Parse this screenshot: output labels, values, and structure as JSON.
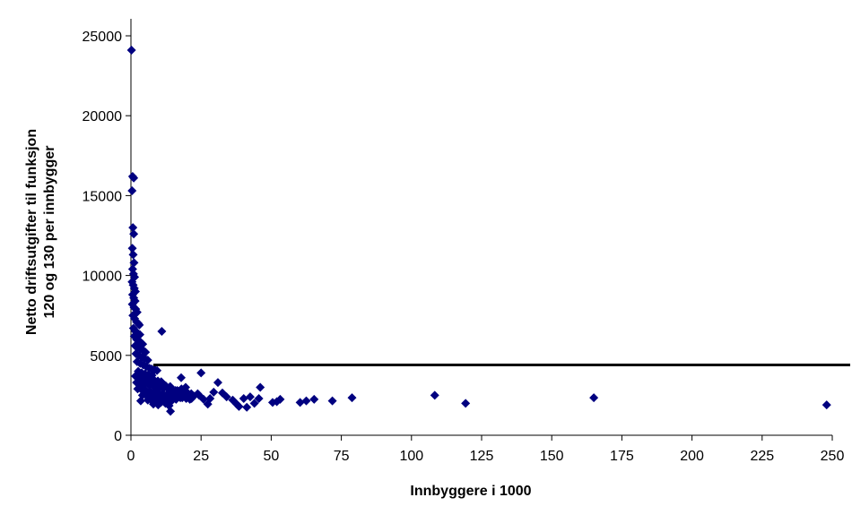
{
  "chart_data": {
    "type": "scatter",
    "title": "",
    "xlabel": "Innbyggere i 1000",
    "ylabel_lines": [
      "Netto driftsutgifter til funksjon",
      "120 og 130 per innbygger"
    ],
    "xlim": [
      0,
      250
    ],
    "ylim": [
      0,
      25000
    ],
    "x_ticks": [
      0,
      25,
      50,
      75,
      100,
      125,
      150,
      175,
      200,
      225,
      250
    ],
    "y_ticks": [
      0,
      5000,
      10000,
      15000,
      20000,
      25000
    ],
    "grid": false,
    "legend": "none",
    "marker_color": "#000080",
    "line_color": "#000000",
    "reference_line": {
      "y": 4400,
      "x_from": 8,
      "x_to": 258
    },
    "points": [
      [
        0.2,
        24100
      ],
      [
        0.6,
        16200
      ],
      [
        1.0,
        16100
      ],
      [
        0.4,
        15300
      ],
      [
        0.7,
        13000
      ],
      [
        1.0,
        12600
      ],
      [
        0.5,
        11700
      ],
      [
        0.8,
        11300
      ],
      [
        1.1,
        10800
      ],
      [
        0.6,
        10400
      ],
      [
        0.9,
        10100
      ],
      [
        1.3,
        9900
      ],
      [
        0.4,
        9600
      ],
      [
        0.8,
        9400
      ],
      [
        1.2,
        9200
      ],
      [
        1.6,
        9000
      ],
      [
        0.6,
        8800
      ],
      [
        1.0,
        8600
      ],
      [
        1.5,
        8400
      ],
      [
        0.5,
        8200
      ],
      [
        1.1,
        8000
      ],
      [
        1.7,
        7900
      ],
      [
        2.2,
        7700
      ],
      [
        0.7,
        7500
      ],
      [
        1.3,
        7300
      ],
      [
        2.0,
        7100
      ],
      [
        2.6,
        7000
      ],
      [
        3.0,
        6900
      ],
      [
        0.9,
        6700
      ],
      [
        1.6,
        6500
      ],
      [
        2.4,
        6400
      ],
      [
        3.2,
        6300
      ],
      [
        1.2,
        6200
      ],
      [
        2.0,
        6000
      ],
      [
        2.8,
        5900
      ],
      [
        3.6,
        5800
      ],
      [
        4.2,
        5700
      ],
      [
        1.5,
        5600
      ],
      [
        2.5,
        5500
      ],
      [
        3.4,
        5400
      ],
      [
        4.5,
        5300
      ],
      [
        5.2,
        5200
      ],
      [
        1.8,
        5100
      ],
      [
        2.9,
        5000
      ],
      [
        4.0,
        4900
      ],
      [
        5.0,
        4800
      ],
      [
        6.0,
        4700
      ],
      [
        2.2,
        4600
      ],
      [
        3.3,
        4500
      ],
      [
        4.4,
        4400
      ],
      [
        5.5,
        4300
      ],
      [
        6.6,
        4200
      ],
      [
        7.4,
        4150
      ],
      [
        8.5,
        4100
      ],
      [
        9.3,
        4050
      ],
      [
        2.6,
        4000
      ],
      [
        3.8,
        3900
      ],
      [
        5.0,
        3850
      ],
      [
        6.2,
        3800
      ],
      [
        7.5,
        3750
      ],
      [
        1.6,
        3700
      ],
      [
        2.8,
        3650
      ],
      [
        4.2,
        3600
      ],
      [
        5.6,
        3550
      ],
      [
        7.0,
        3500
      ],
      [
        8.3,
        3450
      ],
      [
        9.6,
        3400
      ],
      [
        10.8,
        3350
      ],
      [
        2.0,
        3300
      ],
      [
        3.4,
        3250
      ],
      [
        4.8,
        3200
      ],
      [
        6.4,
        3150
      ],
      [
        7.9,
        3100
      ],
      [
        9.1,
        3050
      ],
      [
        10.4,
        3000
      ],
      [
        11.7,
        2950
      ],
      [
        13.2,
        2900
      ],
      [
        14.6,
        2850
      ],
      [
        15.8,
        2800
      ],
      [
        17.1,
        2750
      ],
      [
        18.6,
        2700
      ],
      [
        20.2,
        2650
      ],
      [
        21.5,
        2600
      ],
      [
        2.4,
        2900
      ],
      [
        3.8,
        2850
      ],
      [
        5.3,
        2800
      ],
      [
        6.8,
        2750
      ],
      [
        8.4,
        2700
      ],
      [
        9.8,
        2650
      ],
      [
        11.3,
        2600
      ],
      [
        12.8,
        2550
      ],
      [
        14.2,
        2500
      ],
      [
        15.6,
        2450
      ],
      [
        16.9,
        2400
      ],
      [
        18.3,
        2350
      ],
      [
        19.7,
        2300
      ],
      [
        21.0,
        2250
      ],
      [
        22.4,
        2450
      ],
      [
        23.8,
        2600
      ],
      [
        4.1,
        2500
      ],
      [
        5.7,
        2450
      ],
      [
        7.2,
        2400
      ],
      [
        8.8,
        2350
      ],
      [
        10.1,
        2300
      ],
      [
        11.6,
        2250
      ],
      [
        13.0,
        2200
      ],
      [
        14.5,
        2150
      ],
      [
        16.1,
        2250
      ],
      [
        17.6,
        2350
      ],
      [
        19.0,
        2450
      ],
      [
        6.0,
        2200
      ],
      [
        7.6,
        2150
      ],
      [
        9.2,
        2100
      ],
      [
        10.7,
        2050
      ],
      [
        12.3,
        2000
      ],
      [
        3.5,
        2150
      ],
      [
        8.0,
        1950
      ],
      [
        9.7,
        1900
      ],
      [
        11.9,
        2100
      ],
      [
        13.6,
        1850
      ],
      [
        15.0,
        2700
      ],
      [
        16.5,
        2800
      ],
      [
        18.0,
        2900
      ],
      [
        19.5,
        3000
      ],
      [
        12.4,
        3100
      ],
      [
        14.0,
        3050
      ],
      [
        6.1,
        3400
      ],
      [
        7.3,
        3300
      ],
      [
        11.0,
        6500
      ],
      [
        14.1,
        1500
      ],
      [
        17.9,
        3600
      ],
      [
        25.0,
        3900
      ],
      [
        21.6,
        2300
      ],
      [
        24.3,
        2500
      ],
      [
        25.9,
        2250
      ],
      [
        27.4,
        1950
      ],
      [
        28.2,
        2300
      ],
      [
        29.5,
        2700
      ],
      [
        31.0,
        3300
      ],
      [
        32.6,
        2650
      ],
      [
        34.1,
        2400
      ],
      [
        36.3,
        2200
      ],
      [
        37.7,
        1950
      ],
      [
        38.5,
        1800
      ],
      [
        40.2,
        2300
      ],
      [
        41.3,
        1750
      ],
      [
        42.5,
        2400
      ],
      [
        44.0,
        2000
      ],
      [
        45.6,
        2300
      ],
      [
        46.1,
        3000
      ],
      [
        50.5,
        2050
      ],
      [
        52.0,
        2100
      ],
      [
        53.2,
        2250
      ],
      [
        60.3,
        2050
      ],
      [
        62.5,
        2150
      ],
      [
        65.3,
        2250
      ],
      [
        71.8,
        2150
      ],
      [
        78.8,
        2350
      ],
      [
        108.3,
        2500
      ],
      [
        119.3,
        2000
      ],
      [
        165.0,
        2350
      ],
      [
        248.0,
        1900
      ]
    ]
  }
}
